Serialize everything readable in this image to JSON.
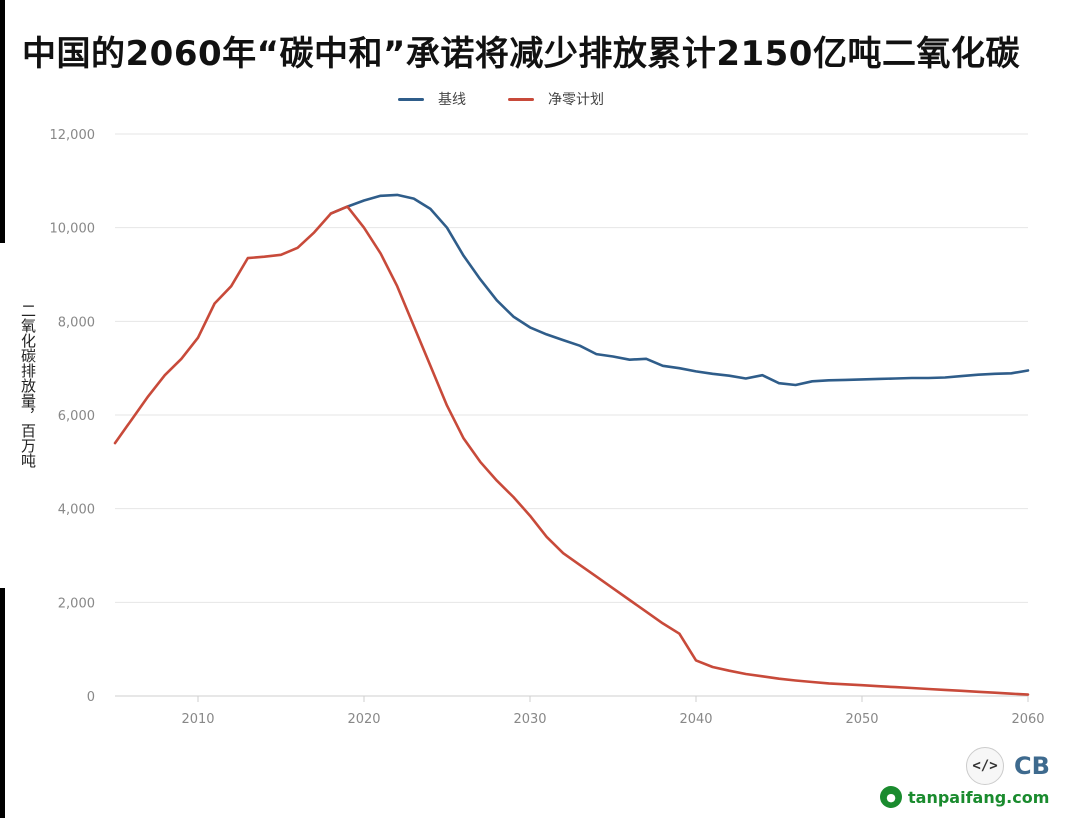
{
  "title": "中国的2060年“碳中和”承诺将减少排放累计2150亿吨二氧化碳",
  "ylabel": "二氧化碳排放量，百万吨",
  "logo": {
    "code_glyph": "</>",
    "brand_text": "CB"
  },
  "watermark": {
    "text": "tanpaifang.com"
  },
  "colors": {
    "baseline": "#2f5d8a",
    "netzero": "#c84a3a",
    "grid": "#e6e6e6",
    "axis": "#cfcfcf",
    "tick": "#888888"
  },
  "chart_data": {
    "type": "line",
    "xlim": [
      2005,
      2060
    ],
    "ylim": [
      0,
      12000
    ],
    "xticks": [
      2010,
      2020,
      2030,
      2040,
      2050,
      2060
    ],
    "yticks": [
      0,
      2000,
      4000,
      6000,
      8000,
      10000,
      12000
    ],
    "ytick_labels": [
      "0",
      "2,000",
      "4,000",
      "6,000",
      "8,000",
      "10,000",
      "12,000"
    ],
    "grid": "horizontal",
    "legend_position": "top-center",
    "series": [
      {
        "name": "基线",
        "color": "#2f5d8a",
        "x": [
          2018,
          2019,
          2020,
          2021,
          2022,
          2023,
          2024,
          2025,
          2026,
          2027,
          2028,
          2029,
          2030,
          2031,
          2032,
          2033,
          2034,
          2035,
          2036,
          2037,
          2038,
          2039,
          2040,
          2041,
          2042,
          2043,
          2044,
          2045,
          2046,
          2047,
          2048,
          2049,
          2050,
          2051,
          2052,
          2053,
          2054,
          2055,
          2056,
          2057,
          2058,
          2059,
          2060
        ],
        "values": [
          10300,
          10450,
          10580,
          10680,
          10700,
          10620,
          10400,
          10000,
          9400,
          8900,
          8450,
          8100,
          7870,
          7720,
          7600,
          7480,
          7300,
          7250,
          7180,
          7200,
          7050,
          7000,
          6930,
          6880,
          6840,
          6780,
          6850,
          6680,
          6640,
          6720,
          6740,
          6750,
          6760,
          6770,
          6780,
          6790,
          6790,
          6800,
          6830,
          6860,
          6880,
          6890,
          6950
        ]
      },
      {
        "name": "净零计划",
        "color": "#c84a3a",
        "x": [
          2005,
          2006,
          2007,
          2008,
          2009,
          2010,
          2011,
          2012,
          2013,
          2014,
          2015,
          2016,
          2017,
          2018,
          2019,
          2020,
          2021,
          2022,
          2023,
          2024,
          2025,
          2026,
          2027,
          2028,
          2029,
          2030,
          2031,
          2032,
          2033,
          2034,
          2035,
          2036,
          2037,
          2038,
          2039,
          2040,
          2041,
          2042,
          2043,
          2044,
          2045,
          2046,
          2047,
          2048,
          2049,
          2050,
          2051,
          2052,
          2053,
          2054,
          2055,
          2056,
          2057,
          2058,
          2059,
          2060
        ],
        "values": [
          5400,
          5900,
          6400,
          6850,
          7200,
          7650,
          8380,
          8750,
          9350,
          9380,
          9420,
          9570,
          9900,
          10300,
          10450,
          10000,
          9450,
          8750,
          7900,
          7050,
          6200,
          5500,
          5000,
          4600,
          4250,
          3850,
          3400,
          3050,
          2800,
          2550,
          2300,
          2050,
          1800,
          1550,
          1330,
          760,
          620,
          540,
          470,
          420,
          370,
          330,
          300,
          270,
          250,
          230,
          210,
          190,
          170,
          150,
          130,
          110,
          90,
          70,
          50,
          30
        ]
      }
    ]
  }
}
